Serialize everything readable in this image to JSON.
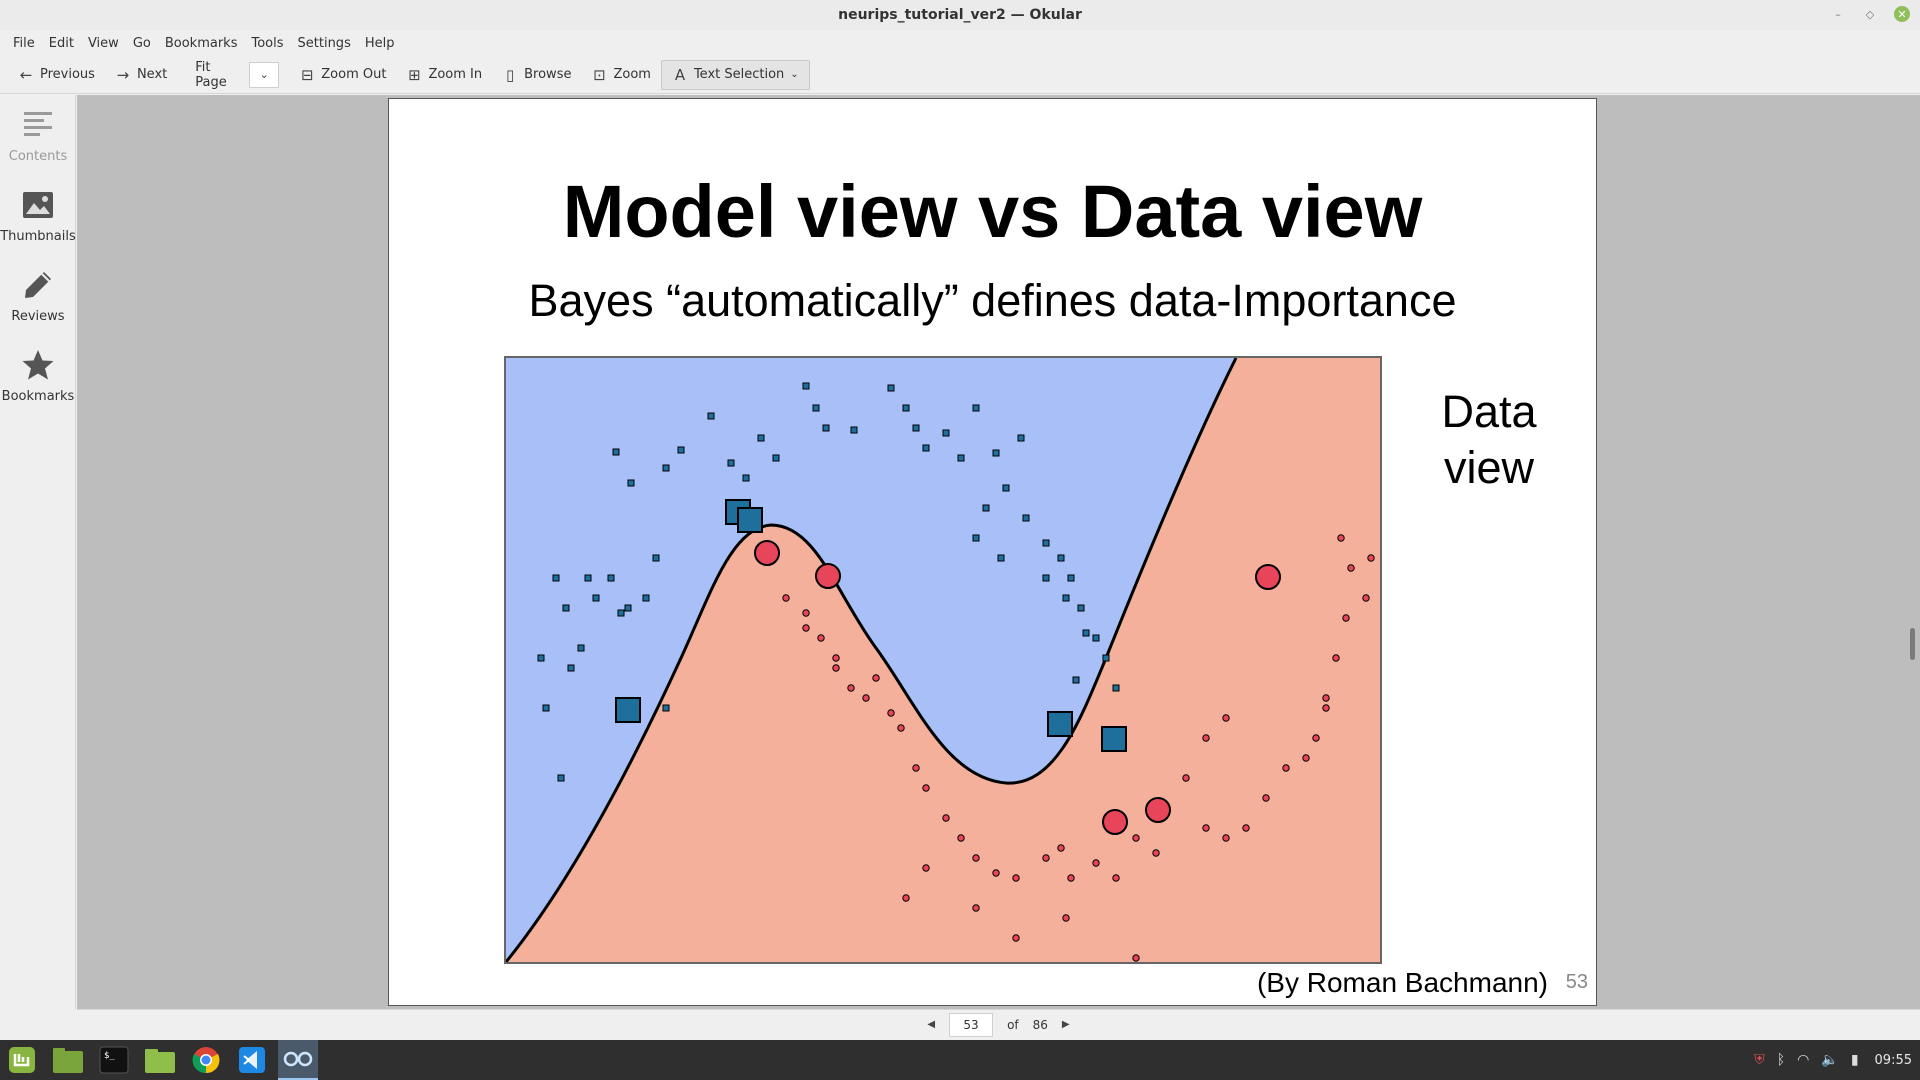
{
  "window": {
    "title": "neurips_tutorial_ver2 — Okular"
  },
  "menu": [
    "File",
    "Edit",
    "View",
    "Go",
    "Bookmarks",
    "Tools",
    "Settings",
    "Help"
  ],
  "toolbar": {
    "previous": "Previous",
    "next": "Next",
    "zoom_value": "Fit Page",
    "zoom_out": "Zoom Out",
    "zoom_in": "Zoom In",
    "browse": "Browse",
    "zoom": "Zoom",
    "text_selection": "Text Selection"
  },
  "sidebar": {
    "items": [
      {
        "label": "Contents",
        "icon": "contents-icon"
      },
      {
        "label": "Thumbnails",
        "icon": "thumbnails-icon"
      },
      {
        "label": "Reviews",
        "icon": "pencil-icon"
      },
      {
        "label": "Bookmarks",
        "icon": "star-icon"
      }
    ]
  },
  "slide": {
    "title": "Model view vs Data view",
    "subtitle": "Bayes “automatically” defines data-Importance",
    "side_label_line1": "Data",
    "side_label_line2": "view",
    "credit": "(By Roman Bachmann)",
    "page_number": "53",
    "colors": {
      "blue_region": "#a8c0f7",
      "red_region": "#f4b09a",
      "blue_point": "#1f6f9c",
      "red_point": "#e8455a"
    }
  },
  "pagebar": {
    "current": "53",
    "of": "of",
    "total": "86"
  },
  "taskbar": {
    "apps": [
      "mint-menu-icon",
      "files-icon",
      "terminal-icon",
      "folder-icon",
      "chrome-icon",
      "vscode-icon",
      "okular-icon"
    ],
    "clock": "09:55"
  }
}
